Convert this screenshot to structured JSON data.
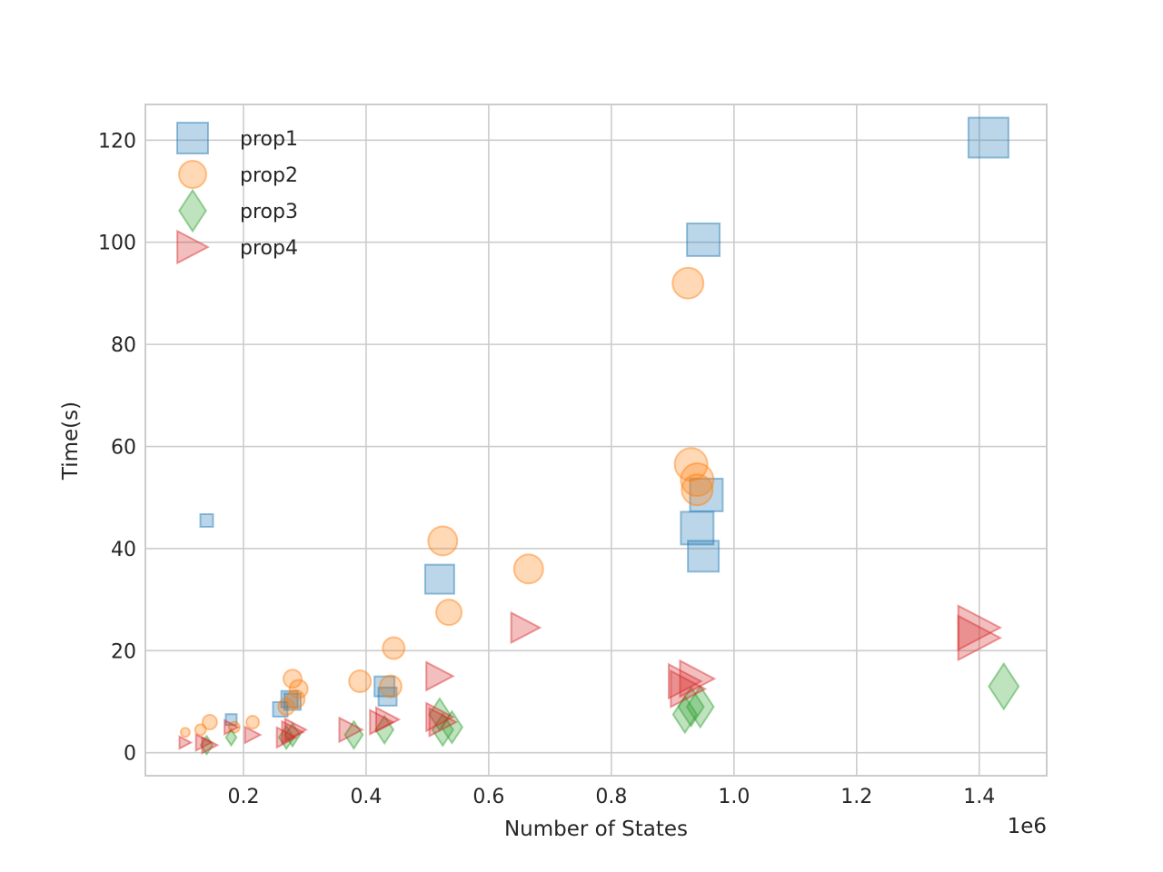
{
  "chart_data": {
    "type": "scatter",
    "title": "",
    "xlabel": "Number of States",
    "ylabel": "Time(s)",
    "x_offset_text": "1e6",
    "xlim": [
      0.04,
      1.51
    ],
    "ylim": [
      -4.5,
      127
    ],
    "xticks": [
      0.2,
      0.4,
      0.6,
      0.8,
      1.0,
      1.2,
      1.4
    ],
    "xtick_labels": [
      "0.2",
      "0.4",
      "0.6",
      "0.8",
      "1.0",
      "1.2",
      "1.4"
    ],
    "yticks": [
      0,
      20,
      40,
      60,
      80,
      100,
      120
    ],
    "ytick_labels": [
      "0",
      "20",
      "40",
      "60",
      "80",
      "100",
      "120"
    ],
    "grid": true,
    "legend_position": "top-left",
    "series": [
      {
        "name": "prop1",
        "marker": "square",
        "color": "#1f77b4",
        "points": [
          {
            "x": 0.14,
            "y": 45.5,
            "s": 7
          },
          {
            "x": 0.18,
            "y": 6.5,
            "s": 6
          },
          {
            "x": 0.26,
            "y": 8.5,
            "s": 8
          },
          {
            "x": 0.275,
            "y": 10.5,
            "s": 9
          },
          {
            "x": 0.28,
            "y": 10,
            "s": 9
          },
          {
            "x": 0.43,
            "y": 13,
            "s": 11
          },
          {
            "x": 0.435,
            "y": 11,
            "s": 10
          },
          {
            "x": 0.52,
            "y": 34,
            "s": 16
          },
          {
            "x": 0.94,
            "y": 44,
            "s": 18
          },
          {
            "x": 0.955,
            "y": 50.5,
            "s": 18
          },
          {
            "x": 0.95,
            "y": 38.5,
            "s": 17
          },
          {
            "x": 0.95,
            "y": 100.5,
            "s": 18
          },
          {
            "x": 1.415,
            "y": 120.5,
            "s": 22
          }
        ]
      },
      {
        "name": "prop2",
        "marker": "circle",
        "color": "#ff7f0e",
        "points": [
          {
            "x": 0.105,
            "y": 4,
            "s": 5
          },
          {
            "x": 0.13,
            "y": 4.5,
            "s": 6
          },
          {
            "x": 0.145,
            "y": 6,
            "s": 8
          },
          {
            "x": 0.185,
            "y": 5,
            "s": 6
          },
          {
            "x": 0.215,
            "y": 6,
            "s": 7
          },
          {
            "x": 0.27,
            "y": 9,
            "s": 9
          },
          {
            "x": 0.28,
            "y": 14.5,
            "s": 10
          },
          {
            "x": 0.29,
            "y": 12.5,
            "s": 10
          },
          {
            "x": 0.285,
            "y": 10.5,
            "s": 10
          },
          {
            "x": 0.39,
            "y": 14,
            "s": 12
          },
          {
            "x": 0.44,
            "y": 13,
            "s": 12
          },
          {
            "x": 0.445,
            "y": 20.5,
            "s": 12
          },
          {
            "x": 0.525,
            "y": 41.5,
            "s": 16
          },
          {
            "x": 0.535,
            "y": 27.5,
            "s": 14
          },
          {
            "x": 0.665,
            "y": 36,
            "s": 16
          },
          {
            "x": 0.925,
            "y": 92,
            "s": 17
          },
          {
            "x": 0.93,
            "y": 56.5,
            "s": 18
          },
          {
            "x": 0.94,
            "y": 53.5,
            "s": 18
          },
          {
            "x": 0.94,
            "y": 51.5,
            "s": 17
          }
        ]
      },
      {
        "name": "prop3",
        "marker": "diamond",
        "color": "#2ca02c",
        "points": [
          {
            "x": 0.14,
            "y": 1.5,
            "s": 8
          },
          {
            "x": 0.18,
            "y": 3,
            "s": 7
          },
          {
            "x": 0.27,
            "y": 3,
            "s": 10
          },
          {
            "x": 0.28,
            "y": 3.5,
            "s": 10
          },
          {
            "x": 0.38,
            "y": 3.5,
            "s": 12
          },
          {
            "x": 0.43,
            "y": 4.5,
            "s": 12
          },
          {
            "x": 0.52,
            "y": 7.5,
            "s": 14
          },
          {
            "x": 0.525,
            "y": 4.5,
            "s": 14
          },
          {
            "x": 0.54,
            "y": 5,
            "s": 14
          },
          {
            "x": 0.92,
            "y": 7.5,
            "s": 16
          },
          {
            "x": 0.93,
            "y": 9,
            "s": 17
          },
          {
            "x": 0.945,
            "y": 9,
            "s": 18
          },
          {
            "x": 1.44,
            "y": 13,
            "s": 20
          }
        ]
      },
      {
        "name": "prop4",
        "marker": "triangle-right",
        "color": "#d62728",
        "points": [
          {
            "x": 0.105,
            "y": 2,
            "s": 6
          },
          {
            "x": 0.135,
            "y": 2,
            "s": 8
          },
          {
            "x": 0.145,
            "y": 1.5,
            "s": 8
          },
          {
            "x": 0.18,
            "y": 5,
            "s": 7
          },
          {
            "x": 0.215,
            "y": 3.5,
            "s": 8
          },
          {
            "x": 0.27,
            "y": 3,
            "s": 10
          },
          {
            "x": 0.28,
            "y": 4,
            "s": 11
          },
          {
            "x": 0.285,
            "y": 4.5,
            "s": 11
          },
          {
            "x": 0.375,
            "y": 4.5,
            "s": 12
          },
          {
            "x": 0.425,
            "y": 6,
            "s": 12
          },
          {
            "x": 0.435,
            "y": 6.5,
            "s": 12
          },
          {
            "x": 0.52,
            "y": 15,
            "s": 14
          },
          {
            "x": 0.52,
            "y": 7,
            "s": 14
          },
          {
            "x": 0.525,
            "y": 6,
            "s": 14
          },
          {
            "x": 0.66,
            "y": 24.5,
            "s": 15
          },
          {
            "x": 0.92,
            "y": 14,
            "s": 17
          },
          {
            "x": 0.925,
            "y": 12.5,
            "s": 18
          },
          {
            "x": 0.94,
            "y": 14.5,
            "s": 18
          },
          {
            "x": 1.4,
            "y": 24.5,
            "s": 22
          },
          {
            "x": 1.4,
            "y": 22.5,
            "s": 22
          }
        ]
      }
    ]
  }
}
